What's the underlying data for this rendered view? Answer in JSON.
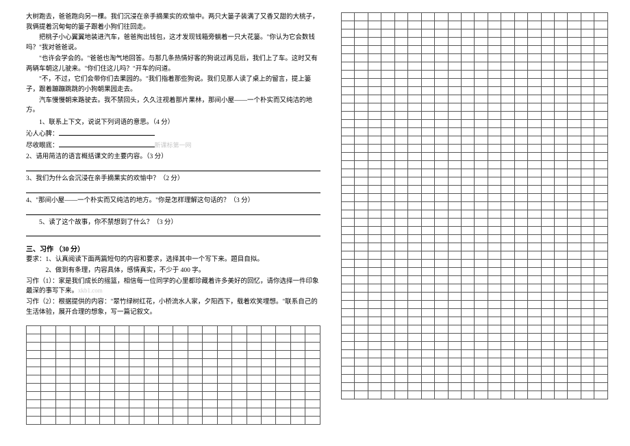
{
  "left": {
    "passage": [
      "大树跑去，爸爸跑向另一棵。我们沉浸在亲手摘果实的欢愉中。两只大篓子装满了又香又甜的大桃子，我俩提着沉甸甸的篓子跟着小狗们往回走。",
      "把桃子小心翼翼地装进汽车，爸爸掏出钱包，这才发现钱箱旁躺着一只大花篓。\"你认为它会数钱吗？\"我对爸爸说。",
      "\"也许会学会的。\"爸爸也淘气地回答。与那几条热情好客的狗说过再见后，我们上了车。这时又有两辆车朝这儿驶来。\"你们住这儿吗？\"开车的问道。",
      "\"不，不过，它们会带你们去果园的。\"我们指着那些狗说。我们见那人读了桌上的留言，提上篓子，跟着蹦蹦跳跳的小狗朝果园走去。",
      "汽车慢慢朝来路驶去。我不禁回头，久久注视着那片果林，那间小屋——一个朴实而又纯洁的地方。"
    ],
    "q1_intro": "1、联系上下文，说说下列词语的意思。（4 分）",
    "q1_word1": "沁人心脾：",
    "q1_word2": "尽收眼底：",
    "q1_watermark": "新课标第一网",
    "q2": "2、请用简洁的语言概括课文的主要内容。（3 分）",
    "q3": "3、我们为什么会沉浸在亲手摘果实的欢愉中？（2 分）",
    "q4": "4、\"那间小屋——一个朴实而又纯洁的地方。\"你是怎样理解这句话的？（3 分）",
    "q5": "5、读了这个故事，你不禁想到了什么？（3 分）",
    "section3_title": "三、习作 （30 分）",
    "req_intro": "要求：1、认真阅读下面两篇短句的内容和要求，选择其中一个写下来。题目自拟。",
    "req_2": "2、做到有条理，内容具体，感情真实，不少于 400 字。",
    "topic1": "习作（1）：家是我们成长的摇篮，相信每一位同学的心里都珍藏着许多美好的回忆，请你选择一件印象最深的事写下来。",
    "topic1_wm": "xkb1.com",
    "topic2": "习作（2）：根据提供的内容：\"翠竹绿树红花，小桥流水人家，夕阳西下，载着欢笑埋想。\"联系自己的生活体验，展开合理的想象，写一篇记叙文。"
  },
  "grids": {
    "left_grid_rows": 12,
    "left_grid_cols": 20,
    "right_grid_rows": 47,
    "right_grid_cols": 20,
    "border_color": "#555555",
    "bg_color": "#ffffff"
  }
}
